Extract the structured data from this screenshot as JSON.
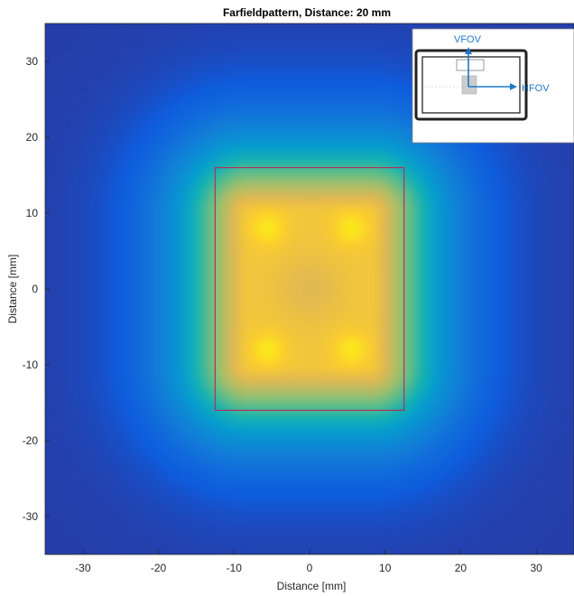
{
  "chart_data": {
    "type": "heatmap",
    "title": "Farfieldpattern, Distance: 20 mm",
    "xlabel": "Distance [mm]",
    "ylabel": "Distance [mm]",
    "xlim": [
      -35,
      35
    ],
    "ylim": [
      -35,
      35
    ],
    "xticks": [
      -30,
      -20,
      -10,
      0,
      10,
      20,
      30
    ],
    "yticks": [
      30,
      20,
      10,
      0,
      -10,
      -20,
      -30
    ],
    "colormap": "parula",
    "field": {
      "description_units": "mm",
      "plateau_x_range": [
        -8,
        8
      ],
      "plateau_y_range": [
        -10,
        10
      ],
      "hot_spots": [
        [
          -5.5,
          8
        ],
        [
          5.5,
          8
        ],
        [
          -5.5,
          -8
        ],
        [
          5.5,
          -8
        ]
      ],
      "center_value": 0.85,
      "plateau_value": 0.9
    },
    "fov_rectangle": {
      "x": [
        -12.5,
        12.5
      ],
      "y": [
        -16,
        16
      ],
      "color": "#b03060"
    },
    "inset": {
      "hfov_label": "HFOV",
      "vfov_label": "VFOV",
      "arrow_color": "#1f78c8"
    }
  }
}
